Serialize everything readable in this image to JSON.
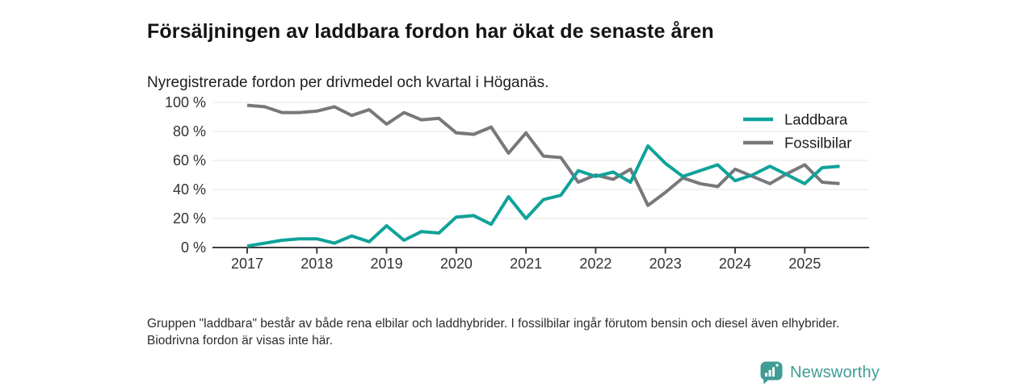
{
  "header": {
    "title": "Försäljningen av laddbara fordon har ökat de senaste åren",
    "subtitle": "Nyregistrerade fordon per drivmedel och kvartal i Höganäs."
  },
  "chart_data": {
    "type": "line",
    "x_unit": "quarter",
    "categories": [
      "2017 Q1",
      "2017 Q2",
      "2017 Q3",
      "2017 Q4",
      "2018 Q1",
      "2018 Q2",
      "2018 Q3",
      "2018 Q4",
      "2019 Q1",
      "2019 Q2",
      "2019 Q3",
      "2019 Q4",
      "2020 Q1",
      "2020 Q2",
      "2020 Q3",
      "2020 Q4",
      "2021 Q1",
      "2021 Q2",
      "2021 Q3",
      "2021 Q4",
      "2022 Q1",
      "2022 Q2",
      "2022 Q3",
      "2022 Q4",
      "2023 Q1",
      "2023 Q2",
      "2023 Q3",
      "2023 Q4",
      "2024 Q1",
      "2024 Q2",
      "2024 Q3",
      "2024 Q4",
      "2025 Q1",
      "2025 Q2",
      "2025 Q3"
    ],
    "series": [
      {
        "name": "Laddbara",
        "color": "#0fa29a",
        "values": [
          1,
          3,
          5,
          6,
          6,
          3,
          8,
          4,
          15,
          5,
          11,
          10,
          21,
          22,
          16,
          35,
          20,
          33,
          36,
          53,
          49,
          52,
          45,
          70,
          58,
          49,
          53,
          57,
          46,
          50,
          56,
          50,
          44,
          55,
          56
        ]
      },
      {
        "name": "Fossilbilar",
        "color": "#77777c",
        "values": [
          98,
          97,
          93,
          93,
          94,
          97,
          91,
          95,
          85,
          93,
          88,
          89,
          79,
          78,
          83,
          65,
          79,
          63,
          62,
          45,
          50,
          47,
          54,
          29,
          38,
          48,
          44,
          42,
          54,
          49,
          44,
          51,
          57,
          45,
          44
        ]
      }
    ],
    "x_tick_labels": [
      "2017",
      "2018",
      "2019",
      "2020",
      "2021",
      "2022",
      "2023",
      "2024",
      "2025"
    ],
    "y_tick_labels": [
      "0 %",
      "20 %",
      "40 %",
      "60 %",
      "80 %",
      "100 %"
    ],
    "ylim": [
      0,
      100
    ],
    "grid": true,
    "legend_position": "top-right",
    "axis_color": "#3f3f3f",
    "grid_color": "#e4e4e4",
    "tick_label_color": "#333333",
    "legend_text_color": "#1c1c1c"
  },
  "footnote": {
    "text": "Gruppen \"laddbara\" består av både rena elbilar och laddhybrider. I fossilbilar ingår förutom bensin och diesel även elhybrider. Biodrivna fordon är visas inte här."
  },
  "logo": {
    "label": "Newsworthy",
    "icon": "bar-chart-badge-icon",
    "color": "#3f9d95"
  }
}
